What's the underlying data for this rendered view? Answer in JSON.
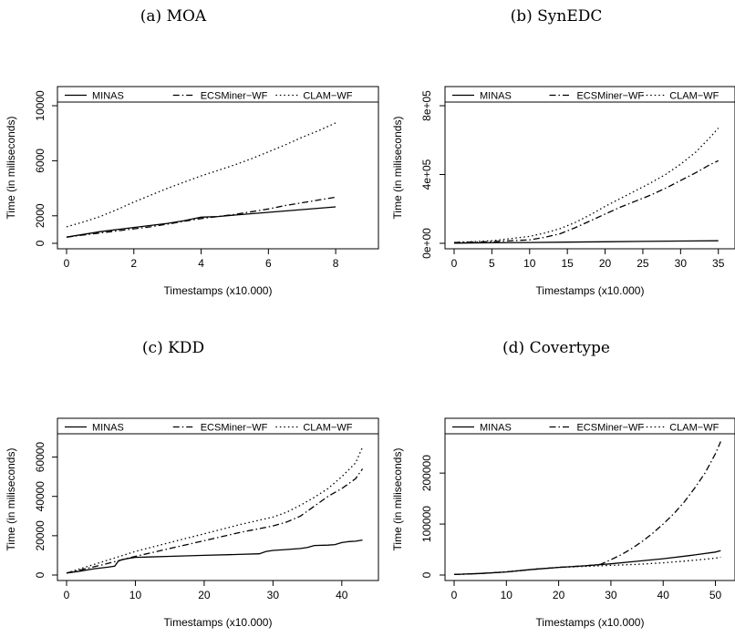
{
  "chart_data": [
    {
      "type": "line",
      "title": "(a) MOA",
      "xlabel": "Timestamps (x10.000)",
      "ylabel": "Time (in miliseconds)",
      "xlim": [
        0,
        9
      ],
      "ylim": [
        0,
        10000
      ],
      "xticks": [
        0,
        2,
        4,
        6,
        8
      ],
      "xtick_labels": [
        "0",
        "2",
        "4",
        "6",
        "8"
      ],
      "yticks": [
        0,
        2000,
        6000,
        10000
      ],
      "ytick_labels": [
        "0",
        "2000",
        "6000",
        "10000"
      ],
      "legend": "top",
      "series": [
        {
          "name": "MINAS",
          "style": "solid",
          "x": [
            0,
            0.5,
            1,
            1.5,
            2,
            2.5,
            3,
            3.5,
            4,
            4.5,
            5,
            5.5,
            6,
            6.5,
            7,
            7.5,
            8
          ],
          "y": [
            450,
            650,
            850,
            1000,
            1150,
            1300,
            1450,
            1650,
            1900,
            1950,
            2050,
            2150,
            2250,
            2350,
            2450,
            2550,
            2650
          ]
        },
        {
          "name": "ECSMiner−WF",
          "style": "dashdot",
          "x": [
            0,
            0.5,
            1,
            1.5,
            2,
            2.5,
            3,
            3.5,
            4,
            4.5,
            5,
            5.5,
            6,
            6.5,
            7,
            7.5,
            8
          ],
          "y": [
            450,
            600,
            750,
            900,
            1050,
            1200,
            1400,
            1600,
            1800,
            1950,
            2100,
            2300,
            2500,
            2750,
            2950,
            3150,
            3350
          ]
        },
        {
          "name": "CLAM−WF",
          "style": "dotted",
          "x": [
            0,
            0.5,
            1,
            1.5,
            2,
            2.5,
            3,
            3.5,
            4,
            4.5,
            5,
            5.5,
            6,
            6.5,
            7,
            7.5,
            8
          ],
          "y": [
            1200,
            1550,
            1950,
            2450,
            3000,
            3500,
            4000,
            4450,
            4900,
            5300,
            5700,
            6150,
            6650,
            7150,
            7700,
            8200,
            8750
          ]
        }
      ]
    },
    {
      "type": "line",
      "title": "(b) SynEDC",
      "xlabel": "Timestamps (x10.000)",
      "ylabel": "Time (in miliseconds)",
      "xlim": [
        0,
        36
      ],
      "ylim": [
        0,
        800000
      ],
      "xticks": [
        0,
        5,
        10,
        15,
        20,
        25,
        30,
        35
      ],
      "xtick_labels": [
        "0",
        "5",
        "10",
        "15",
        "20",
        "25",
        "30",
        "35"
      ],
      "yticks": [
        0,
        400000,
        800000
      ],
      "ytick_labels": [
        "0e+00",
        "4e+05",
        "8e+05"
      ],
      "legend": "top",
      "series": [
        {
          "name": "MINAS",
          "style": "solid",
          "x": [
            0,
            5,
            10,
            15,
            20,
            25,
            30,
            35
          ],
          "y": [
            1000,
            3000,
            5000,
            7000,
            9000,
            11000,
            13000,
            15000
          ]
        },
        {
          "name": "ECSMiner−WF",
          "style": "dashdot",
          "x": [
            0,
            5,
            10,
            12,
            14,
            16,
            18,
            20,
            22,
            24,
            26,
            28,
            30,
            32,
            34,
            35
          ],
          "y": [
            5000,
            10000,
            20000,
            35000,
            55000,
            90000,
            130000,
            170000,
            210000,
            245000,
            280000,
            320000,
            365000,
            410000,
            460000,
            480000
          ]
        },
        {
          "name": "CLAM−WF",
          "style": "dotted",
          "x": [
            0,
            5,
            10,
            12,
            14,
            16,
            18,
            20,
            22,
            24,
            26,
            28,
            30,
            32,
            34,
            35
          ],
          "y": [
            5000,
            15000,
            40000,
            60000,
            85000,
            120000,
            165000,
            215000,
            260000,
            305000,
            350000,
            400000,
            460000,
            530000,
            620000,
            670000
          ]
        }
      ]
    },
    {
      "type": "line",
      "title": "(c) KDD",
      "xlabel": "Timestamps (x10.000)",
      "ylabel": "Time (in miliseconds)",
      "xlim": [
        0,
        44
      ],
      "ylim": [
        0,
        70000
      ],
      "xticks": [
        0,
        10,
        20,
        30,
        40
      ],
      "xtick_labels": [
        "0",
        "10",
        "20",
        "30",
        "40"
      ],
      "yticks": [
        0,
        20000,
        40000,
        60000
      ],
      "ytick_labels": [
        "0",
        "20000",
        "40000",
        "60000"
      ],
      "legend": "top",
      "series": [
        {
          "name": "MINAS",
          "style": "solid",
          "x": [
            0,
            2,
            4,
            6,
            7,
            7.5,
            8,
            9,
            10,
            12,
            15,
            20,
            25,
            28,
            29,
            30,
            32,
            34,
            35,
            36,
            38,
            39,
            40,
            41,
            42,
            43
          ],
          "y": [
            1000,
            2000,
            3200,
            4000,
            4500,
            7000,
            7800,
            8500,
            9000,
            9200,
            9500,
            10000,
            10500,
            10800,
            12000,
            12500,
            13000,
            13500,
            14000,
            15000,
            15200,
            15500,
            16500,
            17000,
            17200,
            17800
          ]
        },
        {
          "name": "ECSMiner−WF",
          "style": "dashdot",
          "x": [
            0,
            5,
            10,
            15,
            20,
            25,
            30,
            32,
            34,
            36,
            38,
            40,
            42,
            43
          ],
          "y": [
            1000,
            5000,
            9500,
            13500,
            17500,
            21500,
            25000,
            27000,
            30000,
            35000,
            40000,
            44000,
            49000,
            54000
          ]
        },
        {
          "name": "CLAM−WF",
          "style": "dotted",
          "x": [
            0,
            5,
            10,
            15,
            20,
            25,
            30,
            32,
            34,
            36,
            38,
            40,
            42,
            43
          ],
          "y": [
            1000,
            6500,
            12000,
            16500,
            21000,
            25500,
            29500,
            32000,
            35500,
            39500,
            44000,
            50000,
            57000,
            65000
          ]
        }
      ]
    },
    {
      "type": "line",
      "title": "(d) Covertype",
      "xlabel": "Timestamps (x10.000)",
      "ylabel": "Time (in miliseconds)",
      "xlim": [
        0,
        52
      ],
      "ylim": [
        0,
        270000
      ],
      "xticks": [
        0,
        10,
        20,
        30,
        40,
        50
      ],
      "xtick_labels": [
        "0",
        "10",
        "20",
        "30",
        "40",
        "50"
      ],
      "yticks": [
        0,
        100000,
        200000
      ],
      "ytick_labels": [
        "0",
        "100000",
        "200000"
      ],
      "legend": "top",
      "series": [
        {
          "name": "MINAS",
          "style": "solid",
          "x": [
            0,
            5,
            10,
            15,
            20,
            25,
            30,
            35,
            40,
            45,
            50,
            51
          ],
          "y": [
            1000,
            3000,
            6000,
            11000,
            15000,
            18000,
            22000,
            27000,
            32000,
            38000,
            45000,
            48000
          ]
        },
        {
          "name": "ECSMiner−WF",
          "style": "dashdot",
          "x": [
            0,
            5,
            10,
            15,
            20,
            25,
            28,
            30,
            32,
            34,
            36,
            38,
            40,
            42,
            44,
            46,
            48,
            50,
            51
          ],
          "y": [
            1000,
            3000,
            6000,
            11000,
            15000,
            18000,
            21000,
            30000,
            40000,
            52000,
            66000,
            82000,
            100000,
            120000,
            143000,
            170000,
            200000,
            238000,
            262000
          ]
        },
        {
          "name": "CLAM−WF",
          "style": "dotted",
          "x": [
            0,
            5,
            10,
            15,
            20,
            25,
            30,
            35,
            40,
            45,
            50,
            51
          ],
          "y": [
            1000,
            3000,
            6000,
            11000,
            15000,
            17000,
            19000,
            21000,
            24000,
            28000,
            33000,
            35000
          ]
        }
      ]
    }
  ]
}
